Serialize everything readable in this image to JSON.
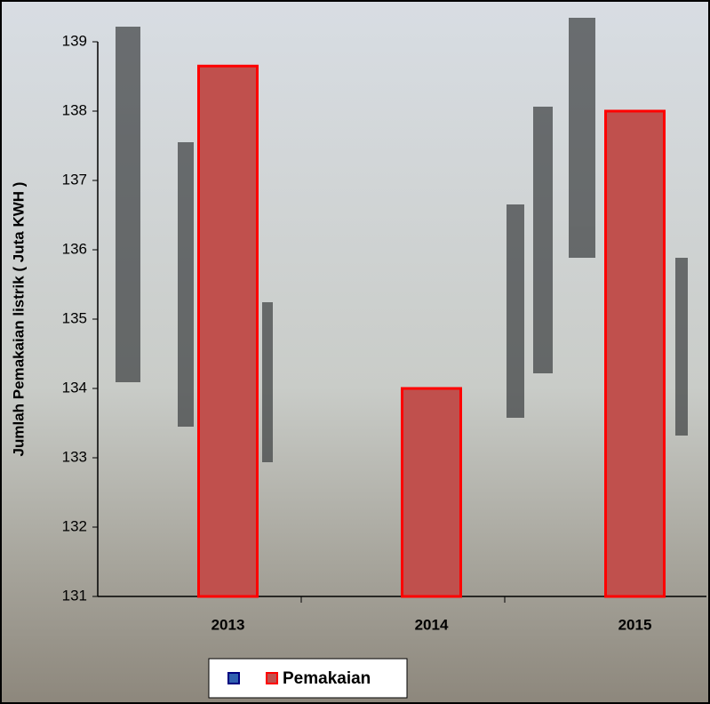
{
  "chart_data": {
    "type": "bar",
    "y_label": "Jumlah Pemakaian listrik ( Juta KWH )",
    "categories": [
      "2013",
      "2014",
      "2015"
    ],
    "series": [
      {
        "name": "Pemakaian",
        "color": "#c0504d",
        "values": [
          138.65,
          134.0,
          138.0
        ]
      }
    ],
    "ylim": [
      131,
      139
    ],
    "yticks": [
      131,
      132,
      133,
      134,
      135,
      136,
      137,
      138,
      139
    ]
  }
}
